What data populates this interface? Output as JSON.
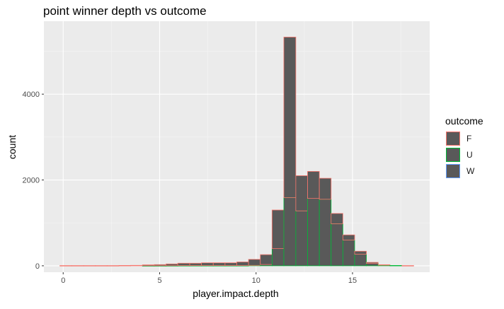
{
  "chart_data": {
    "type": "bar",
    "subtype": "stacked-histogram",
    "title": "point winner depth vs outcome",
    "xlabel": "player.impact.depth",
    "ylabel": "count",
    "xlim": [
      -1.0,
      19.0
    ],
    "ylim": [
      -150,
      5700
    ],
    "xticks": [
      0,
      5,
      10,
      15
    ],
    "yticks": [
      0,
      2000,
      4000
    ],
    "grid": true,
    "legend_title": "outcome",
    "legend_position": "right",
    "fill_color": "#595959",
    "background_color": "#ebebeb",
    "bins": [
      {
        "x0": -0.17,
        "x1": 0.44,
        "W": 0,
        "U": 0,
        "F": 5
      },
      {
        "x0": 0.44,
        "x1": 1.06,
        "W": 0,
        "U": 0,
        "F": 5
      },
      {
        "x0": 1.06,
        "x1": 1.67,
        "W": 0,
        "U": 0,
        "F": 5
      },
      {
        "x0": 1.67,
        "x1": 2.28,
        "W": 0,
        "U": 0,
        "F": 5
      },
      {
        "x0": 2.28,
        "x1": 2.89,
        "W": 0,
        "U": 0,
        "F": 5
      },
      {
        "x0": 2.89,
        "x1": 3.5,
        "W": 0,
        "U": 0,
        "F": 8
      },
      {
        "x0": 3.5,
        "x1": 4.11,
        "W": 0,
        "U": 0,
        "F": 10
      },
      {
        "x0": 4.11,
        "x1": 4.72,
        "W": 0,
        "U": 2,
        "F": 20
      },
      {
        "x0": 4.72,
        "x1": 5.33,
        "W": 0,
        "U": 2,
        "F": 25
      },
      {
        "x0": 5.33,
        "x1": 5.94,
        "W": 0,
        "U": 3,
        "F": 40
      },
      {
        "x0": 5.94,
        "x1": 6.56,
        "W": 0,
        "U": 5,
        "F": 55
      },
      {
        "x0": 6.56,
        "x1": 7.17,
        "W": 0,
        "U": 5,
        "F": 55
      },
      {
        "x0": 7.17,
        "x1": 7.78,
        "W": 0,
        "U": 5,
        "F": 65
      },
      {
        "x0": 7.78,
        "x1": 8.39,
        "W": 0,
        "U": 5,
        "F": 65
      },
      {
        "x0": 8.39,
        "x1": 9.0,
        "W": 0,
        "U": 5,
        "F": 65
      },
      {
        "x0": 9.0,
        "x1": 9.61,
        "W": 0,
        "U": 5,
        "F": 85
      },
      {
        "x0": 9.61,
        "x1": 10.22,
        "W": 0,
        "U": 10,
        "F": 140
      },
      {
        "x0": 10.22,
        "x1": 10.83,
        "W": 0,
        "U": 30,
        "F": 230
      },
      {
        "x0": 10.83,
        "x1": 11.44,
        "W": 0,
        "U": 400,
        "F": 900
      },
      {
        "x0": 11.44,
        "x1": 12.06,
        "W": 0,
        "U": 1590,
        "F": 3740
      },
      {
        "x0": 12.06,
        "x1": 12.67,
        "W": 0,
        "U": 1280,
        "F": 820
      },
      {
        "x0": 12.67,
        "x1": 13.28,
        "W": 0,
        "U": 1570,
        "F": 630
      },
      {
        "x0": 13.28,
        "x1": 13.89,
        "W": 0,
        "U": 1550,
        "F": 490
      },
      {
        "x0": 13.89,
        "x1": 14.5,
        "W": 0,
        "U": 980,
        "F": 240
      },
      {
        "x0": 14.5,
        "x1": 15.11,
        "W": 0,
        "U": 600,
        "F": 120
      },
      {
        "x0": 15.11,
        "x1": 15.72,
        "W": 0,
        "U": 270,
        "F": 70
      },
      {
        "x0": 15.72,
        "x1": 16.33,
        "W": 0,
        "U": 55,
        "F": 25
      },
      {
        "x0": 16.33,
        "x1": 16.94,
        "W": 0,
        "U": 15,
        "F": 10
      },
      {
        "x0": 16.94,
        "x1": 17.56,
        "W": 0,
        "U": 8,
        "F": 0
      },
      {
        "x0": 17.56,
        "x1": 18.17,
        "W": 0,
        "U": 0,
        "F": 5
      }
    ],
    "series": [
      {
        "name": "F",
        "color": "#f8766d"
      },
      {
        "name": "U",
        "color": "#00ba38"
      },
      {
        "name": "W",
        "color": "#619cff"
      }
    ]
  }
}
